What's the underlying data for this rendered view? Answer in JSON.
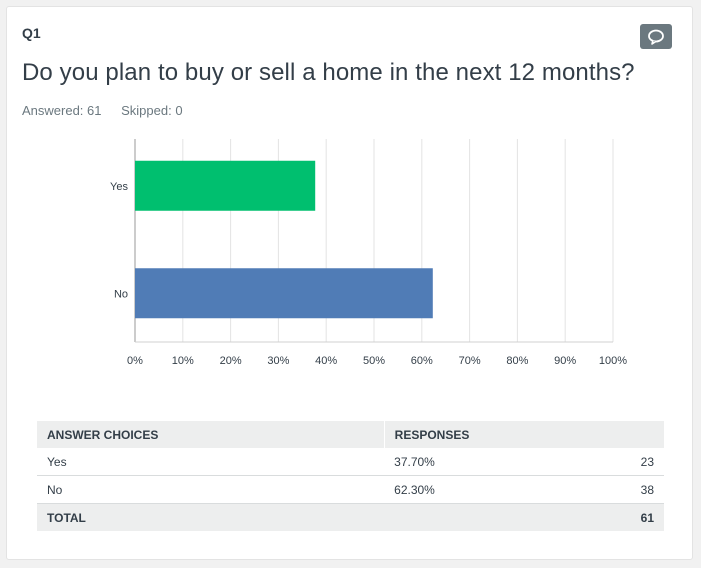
{
  "question": {
    "number": "Q1",
    "title": "Do you plan to buy or sell a home in the next 12 months?",
    "answered": "Answered: 61",
    "skipped": "Skipped: 0"
  },
  "colors": {
    "yes_bar": "#00bf6f",
    "no_bar": "#507cb6",
    "grid": "#e3e3e3"
  },
  "icons": {
    "comment": "speech-bubble-icon"
  },
  "chart_data": {
    "type": "bar",
    "orientation": "horizontal",
    "categories": [
      "Yes",
      "No"
    ],
    "values": [
      37.7,
      62.3
    ],
    "xlim": [
      0,
      100
    ],
    "xticks": [
      "0%",
      "10%",
      "20%",
      "30%",
      "40%",
      "50%",
      "60%",
      "70%",
      "80%",
      "90%",
      "100%"
    ],
    "grid": true
  },
  "table": {
    "headers": [
      "ANSWER CHOICES",
      "RESPONSES"
    ],
    "rows": [
      {
        "choice": "Yes",
        "percent": "37.70%",
        "count": "23"
      },
      {
        "choice": "No",
        "percent": "62.30%",
        "count": "38"
      }
    ],
    "total_label": "TOTAL",
    "total_count": "61"
  }
}
